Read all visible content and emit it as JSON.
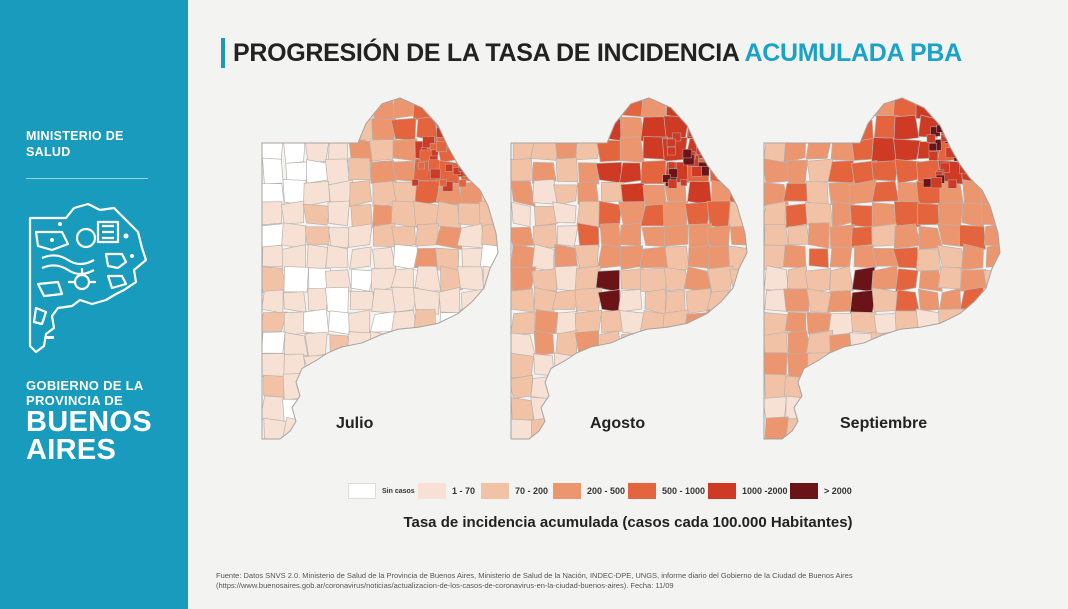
{
  "sidebar": {
    "ministry_line1": "MINISTERIO DE",
    "ministry_line2": "SALUD",
    "gov_line1": "GOBIERNO DE LA",
    "gov_line2": "PROVINCIA DE",
    "gov_line3": "BUENOS",
    "gov_line4": "AIRES"
  },
  "title": {
    "main": "PROGRESIÓN DE LA TASA DE INCIDENCIA ",
    "accent": "ACUMULADA PBA"
  },
  "maps": [
    {
      "label": "Julio"
    },
    {
      "label": "Agosto"
    },
    {
      "label": "Septiembre"
    }
  ],
  "legend": {
    "title": "Tasa de incidencia acumulada (casos cada 100.000 Habitantes)",
    "items": [
      {
        "label": "Sin casos",
        "color": "#ffffff"
      },
      {
        "label": "1 - 70",
        "color": "#f6e1d4"
      },
      {
        "label": "70 - 200",
        "color": "#f2c2a6"
      },
      {
        "label": "200 - 500",
        "color": "#ec9670"
      },
      {
        "label": "500 - 1000",
        "color": "#e4643e"
      },
      {
        "label": "1000 -2000",
        "color": "#cf3a24"
      },
      {
        "label": "> 2000",
        "color": "#6b1418"
      }
    ]
  },
  "source": {
    "line1": "Fuente: Datos SNVS 2.0. Ministerio de Salud de la Provincia de Buenos Aires, Ministerio de Salud de la Nación, INDEC-DPE, UNGS, informe diario del Gobierno de la Ciudad de Buenos Aires",
    "line2": "(https://www.buenosaires.gob.ar/coronavirus/noticias/actualizacion-de-los-casos-de-coronavirus-en-la-ciudad-buenos-aires). Fecha: 11/09"
  }
}
